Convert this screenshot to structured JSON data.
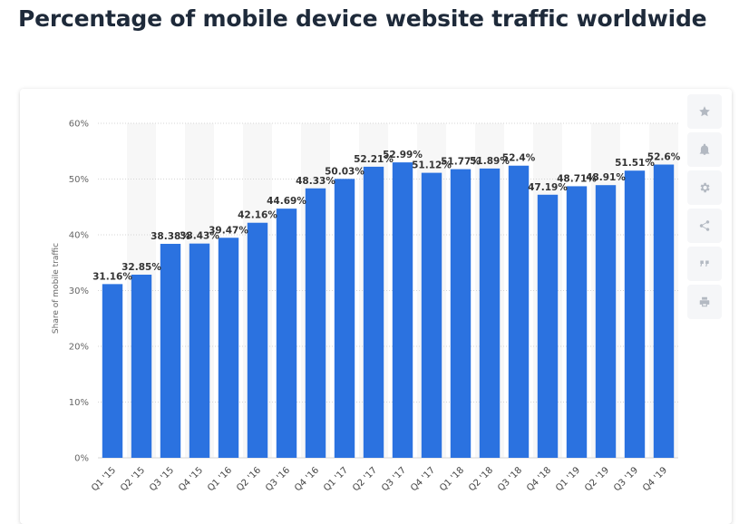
{
  "page": {
    "title": "Percentage of mobile device website traffic worldwide"
  },
  "toolbar": {
    "icons": [
      "star-icon",
      "bell-icon",
      "gear-icon",
      "share-icon",
      "quote-icon",
      "print-icon"
    ]
  },
  "colors": {
    "bar": "#2b72e0",
    "grid": "#d5d5d5",
    "band": "#f7f7f7"
  },
  "chart_data": {
    "type": "bar",
    "title": "",
    "xlabel": "",
    "ylabel": "Share of mobile traffic",
    "ylim": [
      0,
      60
    ],
    "yticks": [
      0,
      10,
      20,
      30,
      40,
      50,
      60
    ],
    "ytick_labels": [
      "0%",
      "10%",
      "20%",
      "30%",
      "40%",
      "50%",
      "60%"
    ],
    "grid": true,
    "categories": [
      "Q1 '15",
      "Q2 '15",
      "Q3 '15",
      "Q4 '15",
      "Q1 '16",
      "Q2 '16",
      "Q3 '16",
      "Q4 '16",
      "Q1 '17",
      "Q2 '17",
      "Q3 '17",
      "Q4 '17",
      "Q1 '18",
      "Q2 '18",
      "Q3 '18",
      "Q4 '18",
      "Q1 '19",
      "Q2 '19",
      "Q3 '19",
      "Q4 '19"
    ],
    "values": [
      31.16,
      32.85,
      38.38,
      38.43,
      39.47,
      42.16,
      44.69,
      48.33,
      50.03,
      52.21,
      52.99,
      51.12,
      51.77,
      51.89,
      52.4,
      47.19,
      48.71,
      48.91,
      51.51,
      52.6
    ],
    "value_labels": [
      "31.16%",
      "32.85%",
      "38.38%",
      "38.43%",
      "39.47%",
      "42.16%",
      "44.69%",
      "48.33%",
      "50.03%",
      "52.21%",
      "52.99%",
      "51.12%",
      "51.77%",
      "51.89%",
      "52.4%",
      "47.19%",
      "48.71%",
      "48.91%",
      "51.51%",
      "52.6%"
    ]
  }
}
